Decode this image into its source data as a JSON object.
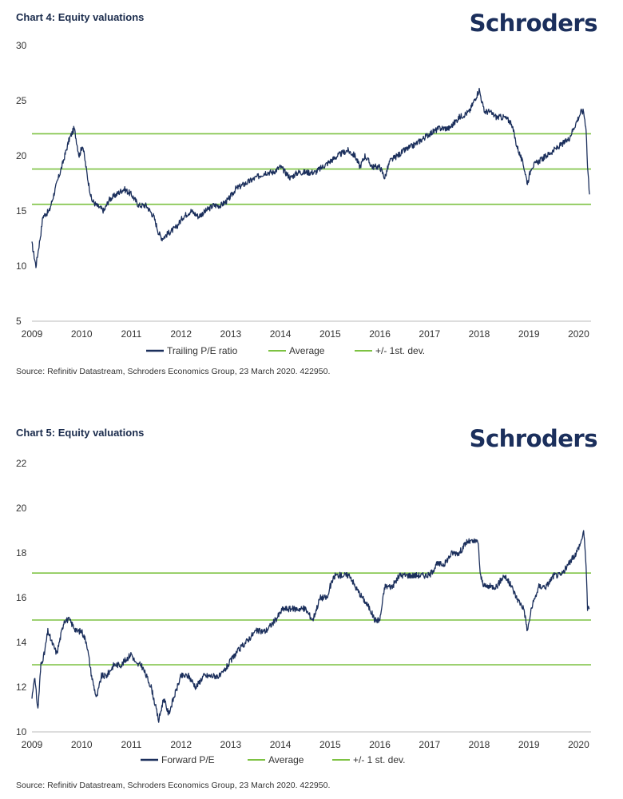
{
  "chart_data": [
    {
      "type": "line",
      "title": "Chart 4: Equity valuations",
      "logo": "Schroders",
      "source": "Source: Refinitiv Datastream, Schroders Economics Group, 23 March 2020. 422950.",
      "ylim": [
        5,
        30
      ],
      "yticks": [
        "30",
        "25",
        "20",
        "15",
        "10",
        "5"
      ],
      "xlim": [
        2009,
        2020.25
      ],
      "xticks": [
        "2009",
        "2010",
        "2011",
        "2012",
        "2013",
        "2014",
        "2015",
        "2016",
        "2017",
        "2018",
        "2019",
        "2020"
      ],
      "series": [
        {
          "name": "Trailing P/E ratio",
          "color": "#1b2f5c",
          "x": [
            2009.0,
            2009.08,
            2009.18,
            2009.22,
            2009.35,
            2009.5,
            2009.6,
            2009.75,
            2009.85,
            2009.95,
            2010.02,
            2010.12,
            2010.2,
            2010.3,
            2010.45,
            2010.55,
            2010.7,
            2010.85,
            2011.0,
            2011.15,
            2011.3,
            2011.45,
            2011.55,
            2011.62,
            2011.75,
            2011.9,
            2012.05,
            2012.2,
            2012.35,
            2012.5,
            2012.65,
            2012.8,
            2012.95,
            2013.1,
            2013.3,
            2013.5,
            2013.7,
            2013.85,
            2014.0,
            2014.2,
            2014.35,
            2014.5,
            2014.7,
            2014.85,
            2015.0,
            2015.15,
            2015.35,
            2015.5,
            2015.6,
            2015.7,
            2015.85,
            2016.0,
            2016.1,
            2016.2,
            2016.35,
            2016.5,
            2016.7,
            2016.85,
            2017.0,
            2017.2,
            2017.4,
            2017.6,
            2017.8,
            2017.9,
            2018.0,
            2018.05,
            2018.1,
            2018.2,
            2018.35,
            2018.5,
            2018.65,
            2018.75,
            2018.9,
            2018.97,
            2019.05,
            2019.2,
            2019.35,
            2019.5,
            2019.65,
            2019.8,
            2019.95,
            2020.05,
            2020.1,
            2020.15,
            2020.18,
            2020.22
          ],
          "values": [
            12.0,
            10.0,
            13.0,
            14.5,
            15.0,
            17.5,
            19.0,
            21.5,
            22.5,
            20.0,
            21.0,
            18.0,
            16.0,
            15.5,
            15.0,
            16.0,
            16.5,
            17.0,
            16.5,
            15.5,
            15.5,
            14.5,
            13.0,
            12.5,
            13.0,
            13.5,
            14.5,
            15.0,
            14.5,
            15.0,
            15.5,
            15.5,
            16.0,
            17.0,
            17.5,
            18.0,
            18.5,
            18.5,
            19.0,
            18.0,
            18.5,
            18.5,
            18.5,
            19.0,
            19.5,
            20.0,
            20.5,
            20.0,
            19.0,
            20.0,
            19.0,
            19.0,
            18.0,
            19.5,
            20.0,
            20.5,
            21.0,
            21.5,
            22.0,
            22.5,
            22.5,
            23.5,
            24.0,
            25.0,
            26.0,
            25.0,
            24.0,
            24.0,
            23.5,
            23.5,
            23.0,
            21.0,
            19.0,
            17.5,
            19.0,
            19.5,
            20.0,
            20.5,
            21.0,
            21.5,
            23.0,
            24.0,
            24.0,
            22.5,
            19.0,
            16.5
          ]
        },
        {
          "name": "Average",
          "color": "#7dc242",
          "constant": 18.8
        },
        {
          "name": "+/- 1st. dev.",
          "color": "#7dc242",
          "band": [
            15.6,
            22.0
          ]
        }
      ]
    },
    {
      "type": "line",
      "title": "Chart 5: Equity valuations",
      "logo": "Schroders",
      "source": "Source: Refinitiv Datastream, Schroders Economics Group, 23 March 2020. 422950.",
      "ylim": [
        10,
        22
      ],
      "yticks": [
        "22",
        "20",
        "18",
        "16",
        "14",
        "12",
        "10"
      ],
      "xlim": [
        2009,
        2020.25
      ],
      "xticks": [
        "2009",
        "2010",
        "2011",
        "2012",
        "2013",
        "2014",
        "2015",
        "2016",
        "2017",
        "2018",
        "2019",
        "2020"
      ],
      "series": [
        {
          "name": "Forward P/E",
          "color": "#1b2f5c",
          "x": [
            2009.0,
            2009.05,
            2009.12,
            2009.18,
            2009.25,
            2009.32,
            2009.4,
            2009.5,
            2009.6,
            2009.65,
            2009.75,
            2009.9,
            2010.0,
            2010.1,
            2010.2,
            2010.3,
            2010.4,
            2010.5,
            2010.65,
            2010.8,
            2011.0,
            2011.1,
            2011.2,
            2011.3,
            2011.4,
            2011.5,
            2011.55,
            2011.65,
            2011.75,
            2011.85,
            2012.0,
            2012.15,
            2012.3,
            2012.45,
            2012.6,
            2012.8,
            2012.95,
            2013.1,
            2013.3,
            2013.5,
            2013.7,
            2013.9,
            2014.05,
            2014.2,
            2014.35,
            2014.5,
            2014.65,
            2014.8,
            2014.95,
            2015.0,
            2015.1,
            2015.25,
            2015.4,
            2015.5,
            2015.65,
            2015.8,
            2015.9,
            2016.0,
            2016.1,
            2016.25,
            2016.4,
            2016.55,
            2016.7,
            2016.85,
            2017.0,
            2017.15,
            2017.3,
            2017.45,
            2017.6,
            2017.75,
            2017.9,
            2017.98,
            2018.02,
            2018.1,
            2018.2,
            2018.35,
            2018.5,
            2018.65,
            2018.75,
            2018.9,
            2018.97,
            2019.05,
            2019.2,
            2019.35,
            2019.5,
            2019.65,
            2019.8,
            2019.95,
            2020.05,
            2020.1,
            2020.15,
            2020.18,
            2020.22
          ],
          "values": [
            11.5,
            12.5,
            11.0,
            13.0,
            13.5,
            14.5,
            14.0,
            13.5,
            14.5,
            15.0,
            15.0,
            14.5,
            14.5,
            14.0,
            12.5,
            11.5,
            12.5,
            12.5,
            13.0,
            13.0,
            13.5,
            13.0,
            13.0,
            12.5,
            12.0,
            11.0,
            10.5,
            11.5,
            10.8,
            11.5,
            12.5,
            12.5,
            12.0,
            12.5,
            12.5,
            12.5,
            13.0,
            13.5,
            14.0,
            14.5,
            14.5,
            15.0,
            15.5,
            15.5,
            15.5,
            15.5,
            15.0,
            16.0,
            16.0,
            16.5,
            17.0,
            17.0,
            17.0,
            16.5,
            16.0,
            15.5,
            15.0,
            15.0,
            16.5,
            16.5,
            17.0,
            17.0,
            17.0,
            17.0,
            17.0,
            17.5,
            17.5,
            18.0,
            18.0,
            18.5,
            18.5,
            18.5,
            17.0,
            16.5,
            16.5,
            16.5,
            17.0,
            16.5,
            16.0,
            15.5,
            14.5,
            15.5,
            16.5,
            16.5,
            17.0,
            17.0,
            17.5,
            18.0,
            18.5,
            19.0,
            17.5,
            15.5,
            15.5
          ]
        },
        {
          "name": "Average",
          "color": "#7dc242",
          "constant": 15.0
        },
        {
          "name": "+/- 1 st. dev.",
          "color": "#7dc242",
          "band": [
            13.0,
            17.1
          ]
        }
      ]
    }
  ]
}
